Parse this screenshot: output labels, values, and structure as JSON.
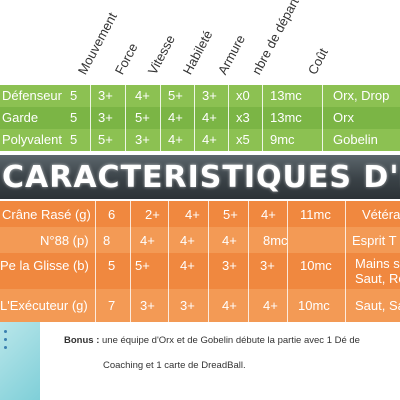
{
  "headers": [
    "Mouvement",
    "Force",
    "Vitesse",
    "Habileté",
    "Armure",
    "nbre de départ",
    "Coût"
  ],
  "green_table": {
    "rows": [
      {
        "name": "Défenseur",
        "mouvement": "5",
        "force": "3+",
        "vitesse": "4+",
        "habilete": "5+",
        "armure": "3+",
        "depart": "x0",
        "cout": "13mc",
        "equipe": "Orx, Drop"
      },
      {
        "name": "Garde",
        "mouvement": "5",
        "force": "3+",
        "vitesse": "5+",
        "habilete": "4+",
        "armure": "4+",
        "depart": "x3",
        "cout": "13mc",
        "equipe": "Orx"
      },
      {
        "name": "Polyvalent",
        "mouvement": "5",
        "force": "5+",
        "vitesse": "3+",
        "habilete": "4+",
        "armure": "4+",
        "depart": "x5",
        "cout": "9mc",
        "equipe": "Gobelin"
      }
    ]
  },
  "banner": {
    "title": "CARACTERISTIQUES D'EQUI"
  },
  "orange_table": {
    "rows": [
      {
        "name": "Crâne Rasé (g)",
        "mouvement": "6",
        "force": "2+",
        "vitesse": "4+",
        "habilete": "5+",
        "armure": "4+",
        "cout": "11mc",
        "comp1": "Vétéran",
        "comp2": ""
      },
      {
        "name": "N°88 (p)",
        "mouvement": "8",
        "force": "4+",
        "vitesse": "4+",
        "habilete": "4+",
        "armure": "8mc",
        "cout": "",
        "comp1": "Esprit T",
        "comp2": ""
      },
      {
        "name": "Pe la Glisse (b)",
        "mouvement": "5",
        "force": "5+",
        "vitesse": "4+",
        "habilete": "3+",
        "armure": "3+",
        "cout": "10mc",
        "comp1": "Mains s",
        "comp2": "Saut, Ro"
      },
      {
        "name": "L'Exécuteur (g)",
        "mouvement": "7",
        "force": "3+",
        "vitesse": "3+",
        "habilete": "4+",
        "armure": "4+",
        "cout": "10mc",
        "comp1": "Saut, Sal",
        "comp2": ""
      }
    ]
  },
  "bonus": {
    "label": "Bonus :",
    "line1": "une équipe d'Orx et de Gobelin débute la partie avec 1 Dé de",
    "line2": "Coaching et 1 carte de DreadBall."
  },
  "colors": {
    "green": "#8cc152",
    "green_dark": "#6fae3a",
    "orange": "#f0883f",
    "orange_light": "#f39a55",
    "banner": "#3a4247",
    "teal": "#7fcfd8"
  }
}
